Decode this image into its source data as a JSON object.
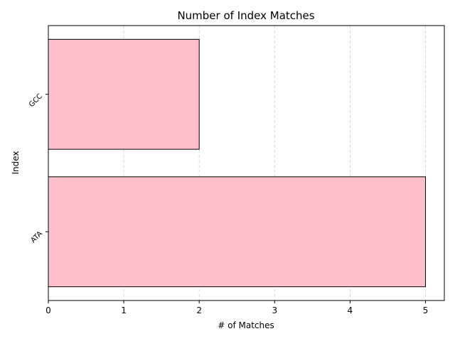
{
  "chart_data": {
    "type": "bar",
    "orientation": "horizontal",
    "title": "Number of Index Matches",
    "xlabel": "# of Matches",
    "ylabel": "Index",
    "categories": [
      "ATA",
      "GCC"
    ],
    "values": [
      5,
      2
    ],
    "xlim": [
      0,
      5.25
    ],
    "xticks": [
      "0",
      "1",
      "2",
      "3",
      "4",
      "5"
    ],
    "grid": "x-dashed",
    "colors": {
      "bar_fill": "#ffc0cb",
      "bar_edge": "#000000",
      "grid": "#cccccc"
    }
  }
}
